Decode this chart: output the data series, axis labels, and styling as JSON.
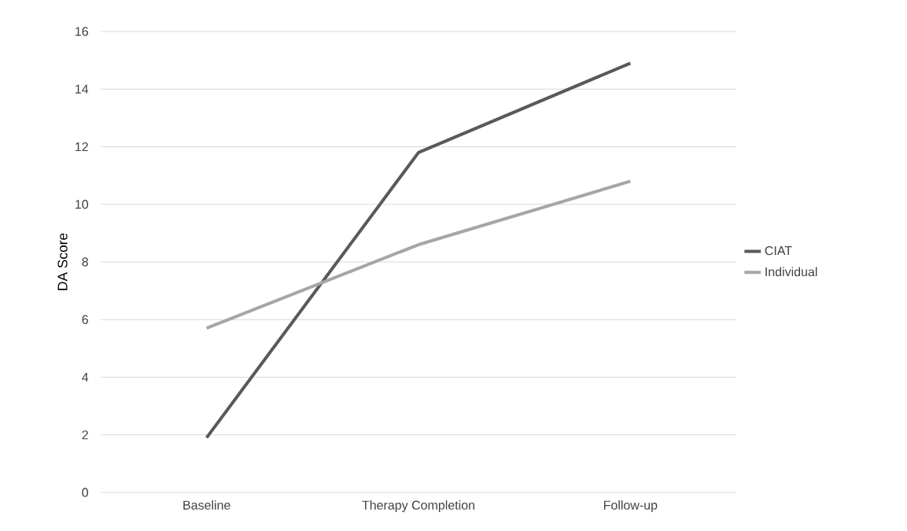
{
  "chart_data": {
    "type": "line",
    "ylabel": "DA Score",
    "categories": [
      "Baseline",
      "Therapy Completion",
      "Follow-up"
    ],
    "series": [
      {
        "name": "CIAT",
        "color": "#595959",
        "values": [
          1.9,
          11.8,
          14.9
        ]
      },
      {
        "name": "Individual",
        "color": "#a6a6a6",
        "values": [
          5.7,
          8.6,
          10.8
        ]
      }
    ],
    "ylim": [
      0,
      16
    ],
    "yticks": [
      0,
      2,
      4,
      6,
      8,
      10,
      12,
      14,
      16
    ],
    "grid": "y",
    "legend": "right"
  }
}
